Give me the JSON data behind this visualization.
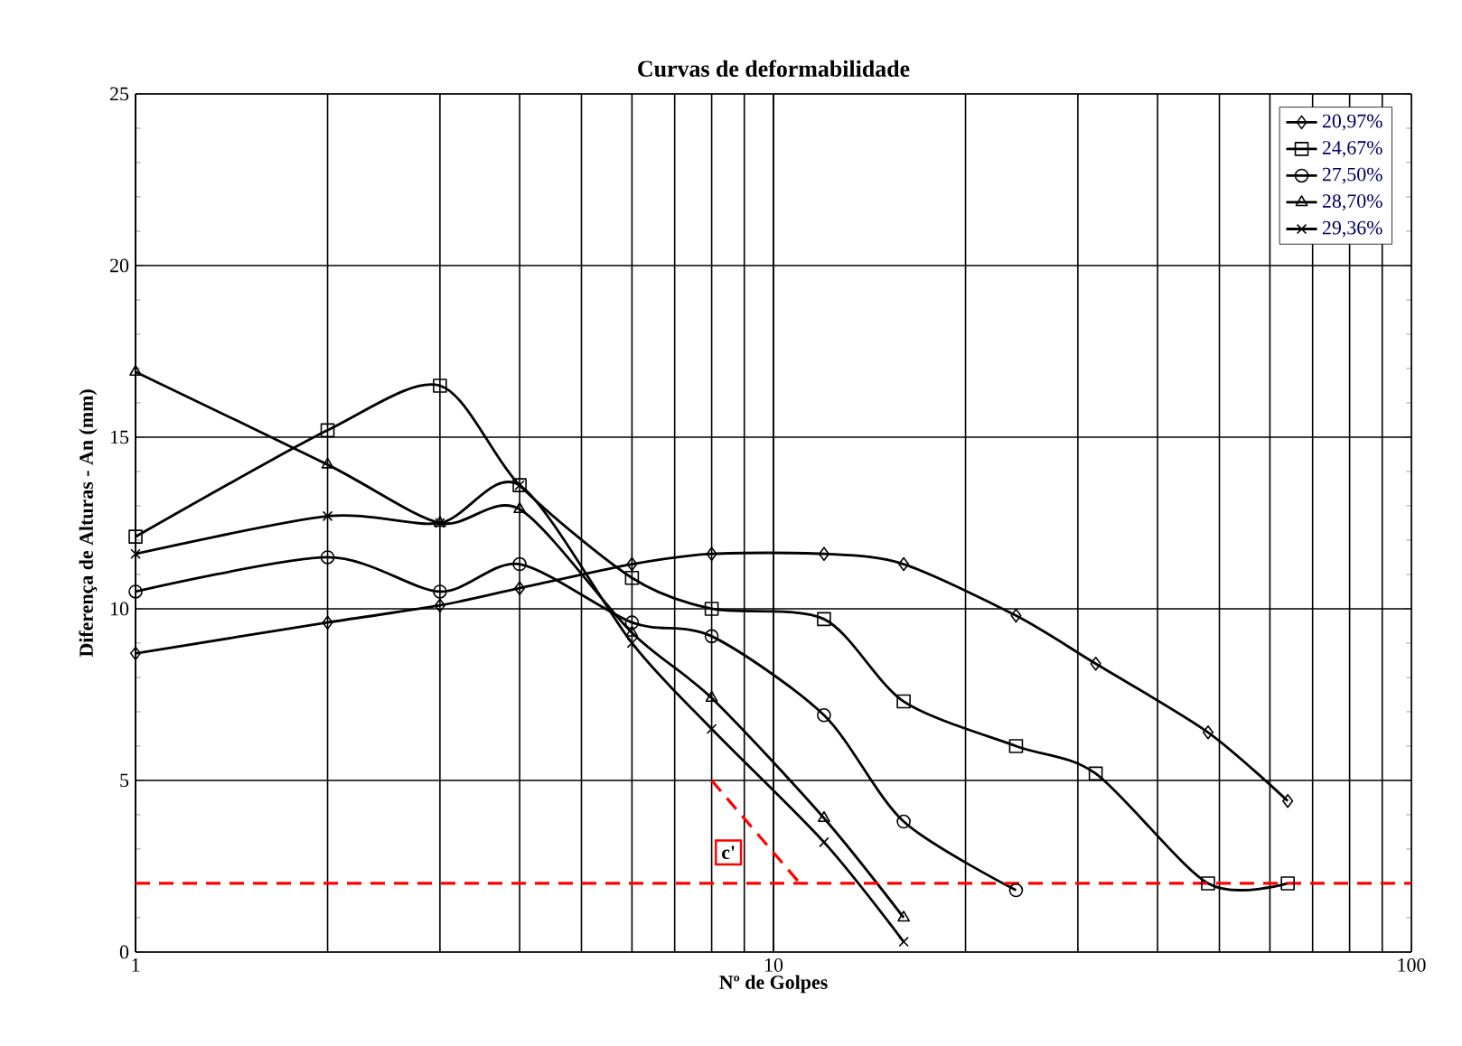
{
  "chart_data": {
    "type": "line",
    "title": "Curvas de deformabilidade",
    "xlabel": "Nº de Golpes",
    "ylabel": "Diferença de Alturas - An (mm)",
    "log": "x",
    "xlim": [
      1,
      100
    ],
    "xticks": [
      1,
      10,
      100
    ],
    "ylim": [
      0,
      25
    ],
    "yticks": [
      0,
      5,
      10,
      15,
      20,
      25
    ],
    "grid": true,
    "legend": "top right",
    "series": [
      {
        "name": "20,97%",
        "color": "#000000",
        "marker": "diamond",
        "x": [
          1,
          2,
          3,
          4,
          6,
          8,
          12,
          16,
          24,
          32,
          48,
          64
        ],
        "values": [
          8.7,
          9.6,
          10.1,
          10.6,
          11.3,
          11.6,
          11.6,
          11.3,
          9.8,
          8.4,
          6.4,
          4.4
        ]
      },
      {
        "name": "24,67%",
        "color": "#000000",
        "marker": "square",
        "x": [
          1,
          2,
          3,
          4,
          6,
          8,
          12,
          16,
          24,
          32,
          48,
          64
        ],
        "values": [
          12.1,
          15.2,
          16.5,
          13.6,
          10.9,
          10.0,
          9.7,
          7.3,
          6.0,
          5.2,
          2.0,
          2.0
        ]
      },
      {
        "name": "27,50%",
        "color": "#000000",
        "marker": "circle",
        "x": [
          1,
          2,
          3,
          4,
          6,
          8,
          12,
          16,
          24
        ],
        "values": [
          10.5,
          11.5,
          10.5,
          11.3,
          9.6,
          9.2,
          6.9,
          3.8,
          1.8
        ]
      },
      {
        "name": "28,70%",
        "color": "#000000",
        "marker": "triangle",
        "x": [
          1,
          2,
          3,
          4,
          6,
          8,
          12,
          16
        ],
        "values": [
          16.9,
          14.2,
          12.5,
          12.9,
          9.3,
          7.4,
          3.9,
          1.0
        ]
      },
      {
        "name": "29,36%",
        "color": "#000000",
        "marker": "cross",
        "x": [
          1,
          2,
          3,
          4,
          6,
          8,
          12,
          16
        ],
        "values": [
          11.6,
          12.7,
          12.5,
          13.6,
          9.0,
          6.5,
          3.2,
          0.3
        ]
      },
      {
        "color": "#ff0000",
        "marker": "none",
        "line_style": "dashed",
        "x": [
          8,
          11
        ],
        "values": [
          5,
          2
        ]
      }
    ],
    "ref_lines": [
      {
        "axis": "y",
        "value": 2,
        "color": "#ff0000",
        "line_style": "dashed"
      }
    ],
    "annotations": [
      {
        "text": "c'",
        "x": 8.5,
        "y": 2.9
      }
    ]
  }
}
